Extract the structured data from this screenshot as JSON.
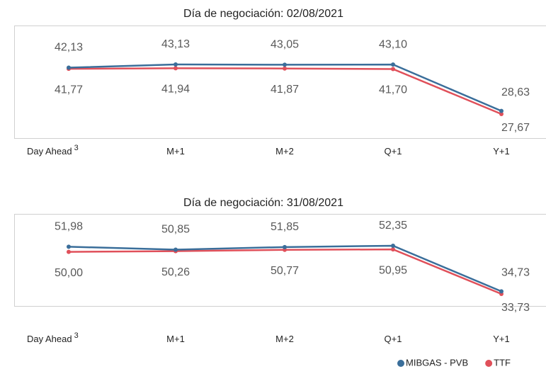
{
  "chart_data": [
    {
      "type": "line",
      "title": "Día de negociación: 02/08/2021",
      "categories": [
        "Day Ahead",
        "M+1",
        "M+2",
        "Q+1",
        "Y+1"
      ],
      "footnote_marks": [
        "3",
        null,
        null,
        null,
        null
      ],
      "series": [
        {
          "color": "#3a6e9a",
          "values": [
            42.13,
            43.13,
            43.05,
            43.1,
            28.63
          ],
          "value_labels": [
            "42,13",
            "43,13",
            "43,05",
            "43,10",
            "28,63"
          ]
        },
        {
          "color": "#e0505a",
          "values": [
            41.77,
            41.94,
            41.87,
            41.7,
            27.67
          ],
          "value_labels": [
            "41,77",
            "41,94",
            "41,87",
            "41,70",
            "27,67"
          ]
        }
      ]
    },
    {
      "type": "line",
      "title": "Día de negociación: 31/08/2021",
      "categories": [
        "Day Ahead",
        "M+1",
        "M+2",
        "Q+1",
        "Y+1"
      ],
      "footnote_marks": [
        "3",
        null,
        null,
        null,
        null
      ],
      "legend": "bottom-right",
      "series": [
        {
          "name": "MIBGAS - PVB",
          "color": "#3a6e9a",
          "values": [
            51.98,
            50.85,
            51.85,
            52.35,
            34.73
          ],
          "value_labels": [
            "51,98",
            "50,85",
            "51,85",
            "52,35",
            "34,73"
          ]
        },
        {
          "name": "TTF",
          "color": "#e0505a",
          "values": [
            50.0,
            50.26,
            50.77,
            50.95,
            33.73
          ],
          "value_labels": [
            "50,00",
            "50,26",
            "50,77",
            "50,95",
            "33,73"
          ]
        }
      ]
    }
  ]
}
